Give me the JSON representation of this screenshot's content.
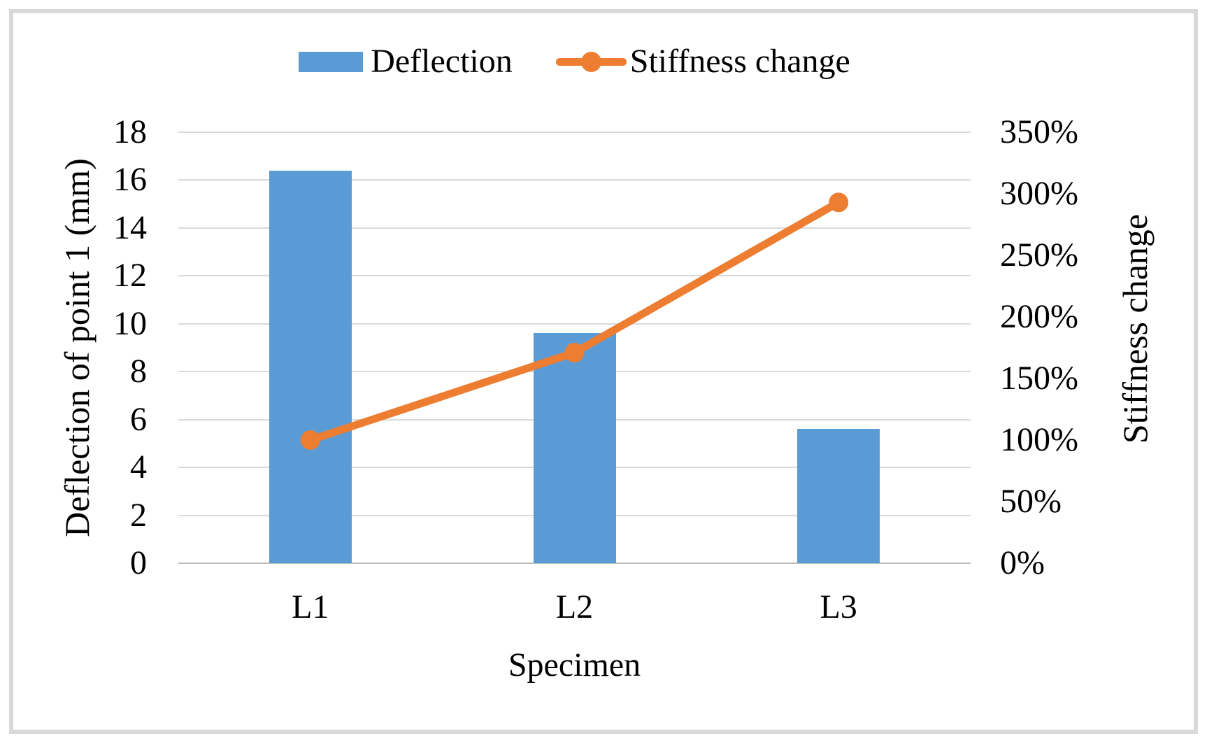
{
  "figure": {
    "background_color": "#ffffff",
    "frame_color": "#d9d9d9"
  },
  "chart_data": {
    "type": "combo-bar-line",
    "categories": [
      "L1",
      "L2",
      "L3"
    ],
    "series": [
      {
        "name": "Deflection",
        "type": "bar",
        "axis": "left",
        "color": "#5b9bd5",
        "unit": "mm",
        "values": [
          16.4,
          9.6,
          5.6
        ]
      },
      {
        "name": "Stiffness change",
        "type": "line",
        "axis": "right",
        "color": "#ed7d31",
        "unit": "%",
        "values": [
          100,
          171,
          293
        ]
      }
    ],
    "x_axis": {
      "label": "Specimen",
      "tick_labels": [
        "L1",
        "L2",
        "L3"
      ]
    },
    "left_axis": {
      "label": "Deflection of point 1 (mm)",
      "min": 0,
      "max": 18,
      "step": 2,
      "tick_labels": [
        "0",
        "2",
        "4",
        "6",
        "8",
        "10",
        "12",
        "14",
        "16",
        "18"
      ]
    },
    "right_axis": {
      "label": "Stiffness change",
      "min": 0,
      "max": 350,
      "step": 50,
      "tick_labels": [
        "0%",
        "50%",
        "100%",
        "150%",
        "200%",
        "250%",
        "300%",
        "350%"
      ]
    },
    "legend": {
      "position": "top",
      "entries": [
        "Deflection",
        "Stiffness change"
      ]
    },
    "grid": true
  }
}
